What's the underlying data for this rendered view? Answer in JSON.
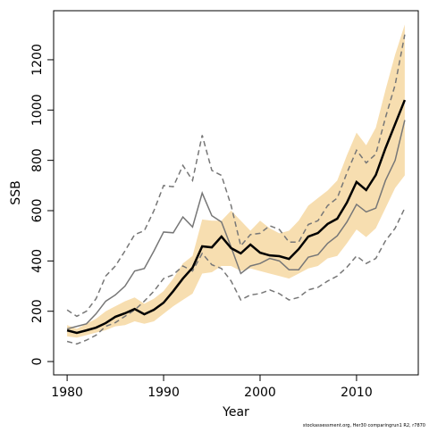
{
  "chart_data": {
    "type": "line",
    "xlabel": "Year",
    "ylabel": "SSB",
    "footnote": "stockassessment.org, Her30 comparingrun1 R2, r7870",
    "x": [
      1980,
      1981,
      1982,
      1983,
      1984,
      1985,
      1986,
      1987,
      1988,
      1989,
      1990,
      1991,
      1992,
      1993,
      1994,
      1995,
      1996,
      1997,
      1998,
      1999,
      2000,
      2001,
      2002,
      2003,
      2004,
      2005,
      2006,
      2007,
      2008,
      2009,
      2010,
      2011,
      2012,
      2013,
      2014,
      2015
    ],
    "xlim": [
      1978.6,
      2016.4
    ],
    "ylim": [
      -53,
      1395
    ],
    "xticks": [
      1980,
      1990,
      2000,
      2010
    ],
    "yticks": [
      0,
      200,
      400,
      600,
      800,
      1000,
      1200
    ],
    "band": {
      "color": "#f7deb0",
      "upper": [
        145,
        130,
        150,
        170,
        200,
        220,
        240,
        255,
        230,
        250,
        280,
        330,
        390,
        420,
        565,
        560,
        560,
        600,
        560,
        520,
        560,
        530,
        510,
        520,
        560,
        620,
        650,
        680,
        720,
        820,
        910,
        860,
        930,
        1080,
        1220,
        1340
      ],
      "lower": [
        100,
        95,
        105,
        115,
        125,
        140,
        145,
        160,
        150,
        160,
        190,
        220,
        245,
        270,
        350,
        355,
        380,
        380,
        360,
        370,
        360,
        350,
        340,
        330,
        350,
        370,
        380,
        410,
        420,
        470,
        525,
        495,
        530,
        610,
        690,
        740
      ]
    },
    "series": [
      {
        "color": "#777777",
        "dashed": true,
        "width": 1.5,
        "values": [
          205,
          180,
          200,
          250,
          340,
          380,
          440,
          505,
          520,
          600,
          700,
          695,
          780,
          720,
          900,
          760,
          740,
          620,
          460,
          505,
          510,
          540,
          525,
          475,
          475,
          545,
          560,
          620,
          650,
          750,
          840,
          790,
          825,
          970,
          1100,
          1300
        ]
      },
      {
        "color": "#777777",
        "dashed": true,
        "width": 1.5,
        "values": [
          80,
          70,
          85,
          105,
          140,
          155,
          180,
          205,
          240,
          280,
          330,
          345,
          380,
          360,
          430,
          385,
          370,
          320,
          245,
          265,
          270,
          285,
          270,
          245,
          255,
          285,
          295,
          320,
          340,
          375,
          420,
          390,
          410,
          480,
          530,
          610
        ]
      },
      {
        "color": "#777777",
        "dashed": false,
        "width": 1.5,
        "values": [
          130,
          140,
          150,
          190,
          240,
          265,
          300,
          360,
          370,
          440,
          515,
          512,
          575,
          535,
          670,
          580,
          555,
          455,
          350,
          380,
          390,
          410,
          400,
          365,
          365,
          415,
          425,
          470,
          500,
          555,
          625,
          595,
          610,
          720,
          800,
          960
        ]
      },
      {
        "color": "#000000",
        "dashed": false,
        "width": 2.5,
        "values": [
          124,
          114,
          124,
          135,
          153,
          178,
          192,
          209,
          188,
          206,
          234,
          280,
          330,
          373,
          458,
          454,
          497,
          451,
          430,
          465,
          433,
          422,
          419,
          408,
          447,
          497,
          511,
          547,
          568,
          632,
          714,
          682,
          742,
          848,
          944,
          1040
        ]
      }
    ]
  }
}
